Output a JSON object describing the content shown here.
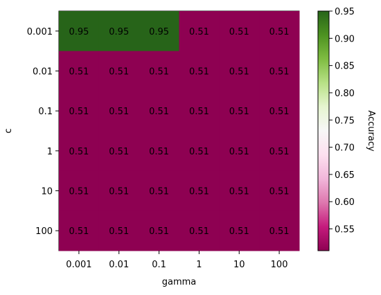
{
  "chart_data": {
    "type": "heatmap",
    "xlabel": "gamma",
    "ylabel": "c",
    "x_categories": [
      "0.001",
      "0.01",
      "0.1",
      "1",
      "10",
      "100"
    ],
    "y_categories": [
      "0.001",
      "0.01",
      "0.1",
      "1",
      "10",
      "100"
    ],
    "values": [
      [
        0.95,
        0.95,
        0.95,
        0.51,
        0.51,
        0.51
      ],
      [
        0.51,
        0.51,
        0.51,
        0.51,
        0.51,
        0.51
      ],
      [
        0.51,
        0.51,
        0.51,
        0.51,
        0.51,
        0.51
      ],
      [
        0.51,
        0.51,
        0.51,
        0.51,
        0.51,
        0.51
      ],
      [
        0.51,
        0.51,
        0.51,
        0.51,
        0.51,
        0.51
      ],
      [
        0.51,
        0.51,
        0.51,
        0.51,
        0.51,
        0.51
      ]
    ],
    "colorbar": {
      "label": "Accuracy",
      "range": [
        0.51,
        0.95
      ],
      "ticks": [
        "0.55",
        "0.60",
        "0.65",
        "0.70",
        "0.75",
        "0.80",
        "0.85",
        "0.90",
        "0.95"
      ],
      "colormap": "PiYG"
    },
    "colors": {
      "low": "#8e0152",
      "high": "#276419"
    }
  }
}
